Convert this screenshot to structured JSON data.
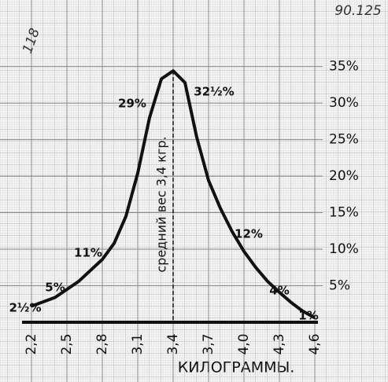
{
  "chart_data": {
    "type": "line",
    "xlabel": "КИЛОГРАММЫ.",
    "vline_label": "средний вес 3,4 кгр.",
    "vline_x": 3.4,
    "notes": [
      "118",
      "90.125"
    ],
    "annotations": [
      "2½%",
      "5%",
      "11%",
      "29%",
      "32½%",
      "12%",
      "4%",
      "1%"
    ],
    "x": [
      2.2,
      2.4,
      2.6,
      2.8,
      2.9,
      3.0,
      3.1,
      3.2,
      3.3,
      3.4,
      3.5,
      3.6,
      3.7,
      3.8,
      3.9,
      4.0,
      4.1,
      4.2,
      4.3,
      4.4,
      4.5,
      4.6
    ],
    "series": [
      {
        "color": "#111111",
        "values": [
          2.2,
          3.4,
          5.6,
          8.6,
          10.8,
          14.5,
          20.4,
          28,
          33.3,
          34.4,
          32.8,
          25.3,
          19.4,
          15.6,
          12.4,
          9.7,
          7.5,
          5.6,
          4.1,
          2.7,
          1.5,
          0.6
        ]
      }
    ],
    "xlim": [
      2.2,
      4.6
    ],
    "ylim": [
      0,
      37
    ],
    "xticks": [
      {
        "value": 2.2,
        "label": "2,2"
      },
      {
        "value": 2.5,
        "label": "2,5"
      },
      {
        "value": 2.8,
        "label": "2,8"
      },
      {
        "value": 3.1,
        "label": "3,1"
      },
      {
        "value": 3.4,
        "label": "3,4"
      },
      {
        "value": 3.7,
        "label": "3,7"
      },
      {
        "value": 4.0,
        "label": "4,0"
      },
      {
        "value": 4.3,
        "label": "4,3"
      },
      {
        "value": 4.6,
        "label": "4,6"
      }
    ],
    "yticks": [
      {
        "value": 5,
        "label": "5%"
      },
      {
        "value": 10,
        "label": "10%"
      },
      {
        "value": 15,
        "label": "15%"
      },
      {
        "value": 20,
        "label": "20%"
      },
      {
        "value": 25,
        "label": "25%"
      },
      {
        "value": 30,
        "label": "30%"
      },
      {
        "value": 35,
        "label": "35%"
      }
    ],
    "grid": true
  }
}
